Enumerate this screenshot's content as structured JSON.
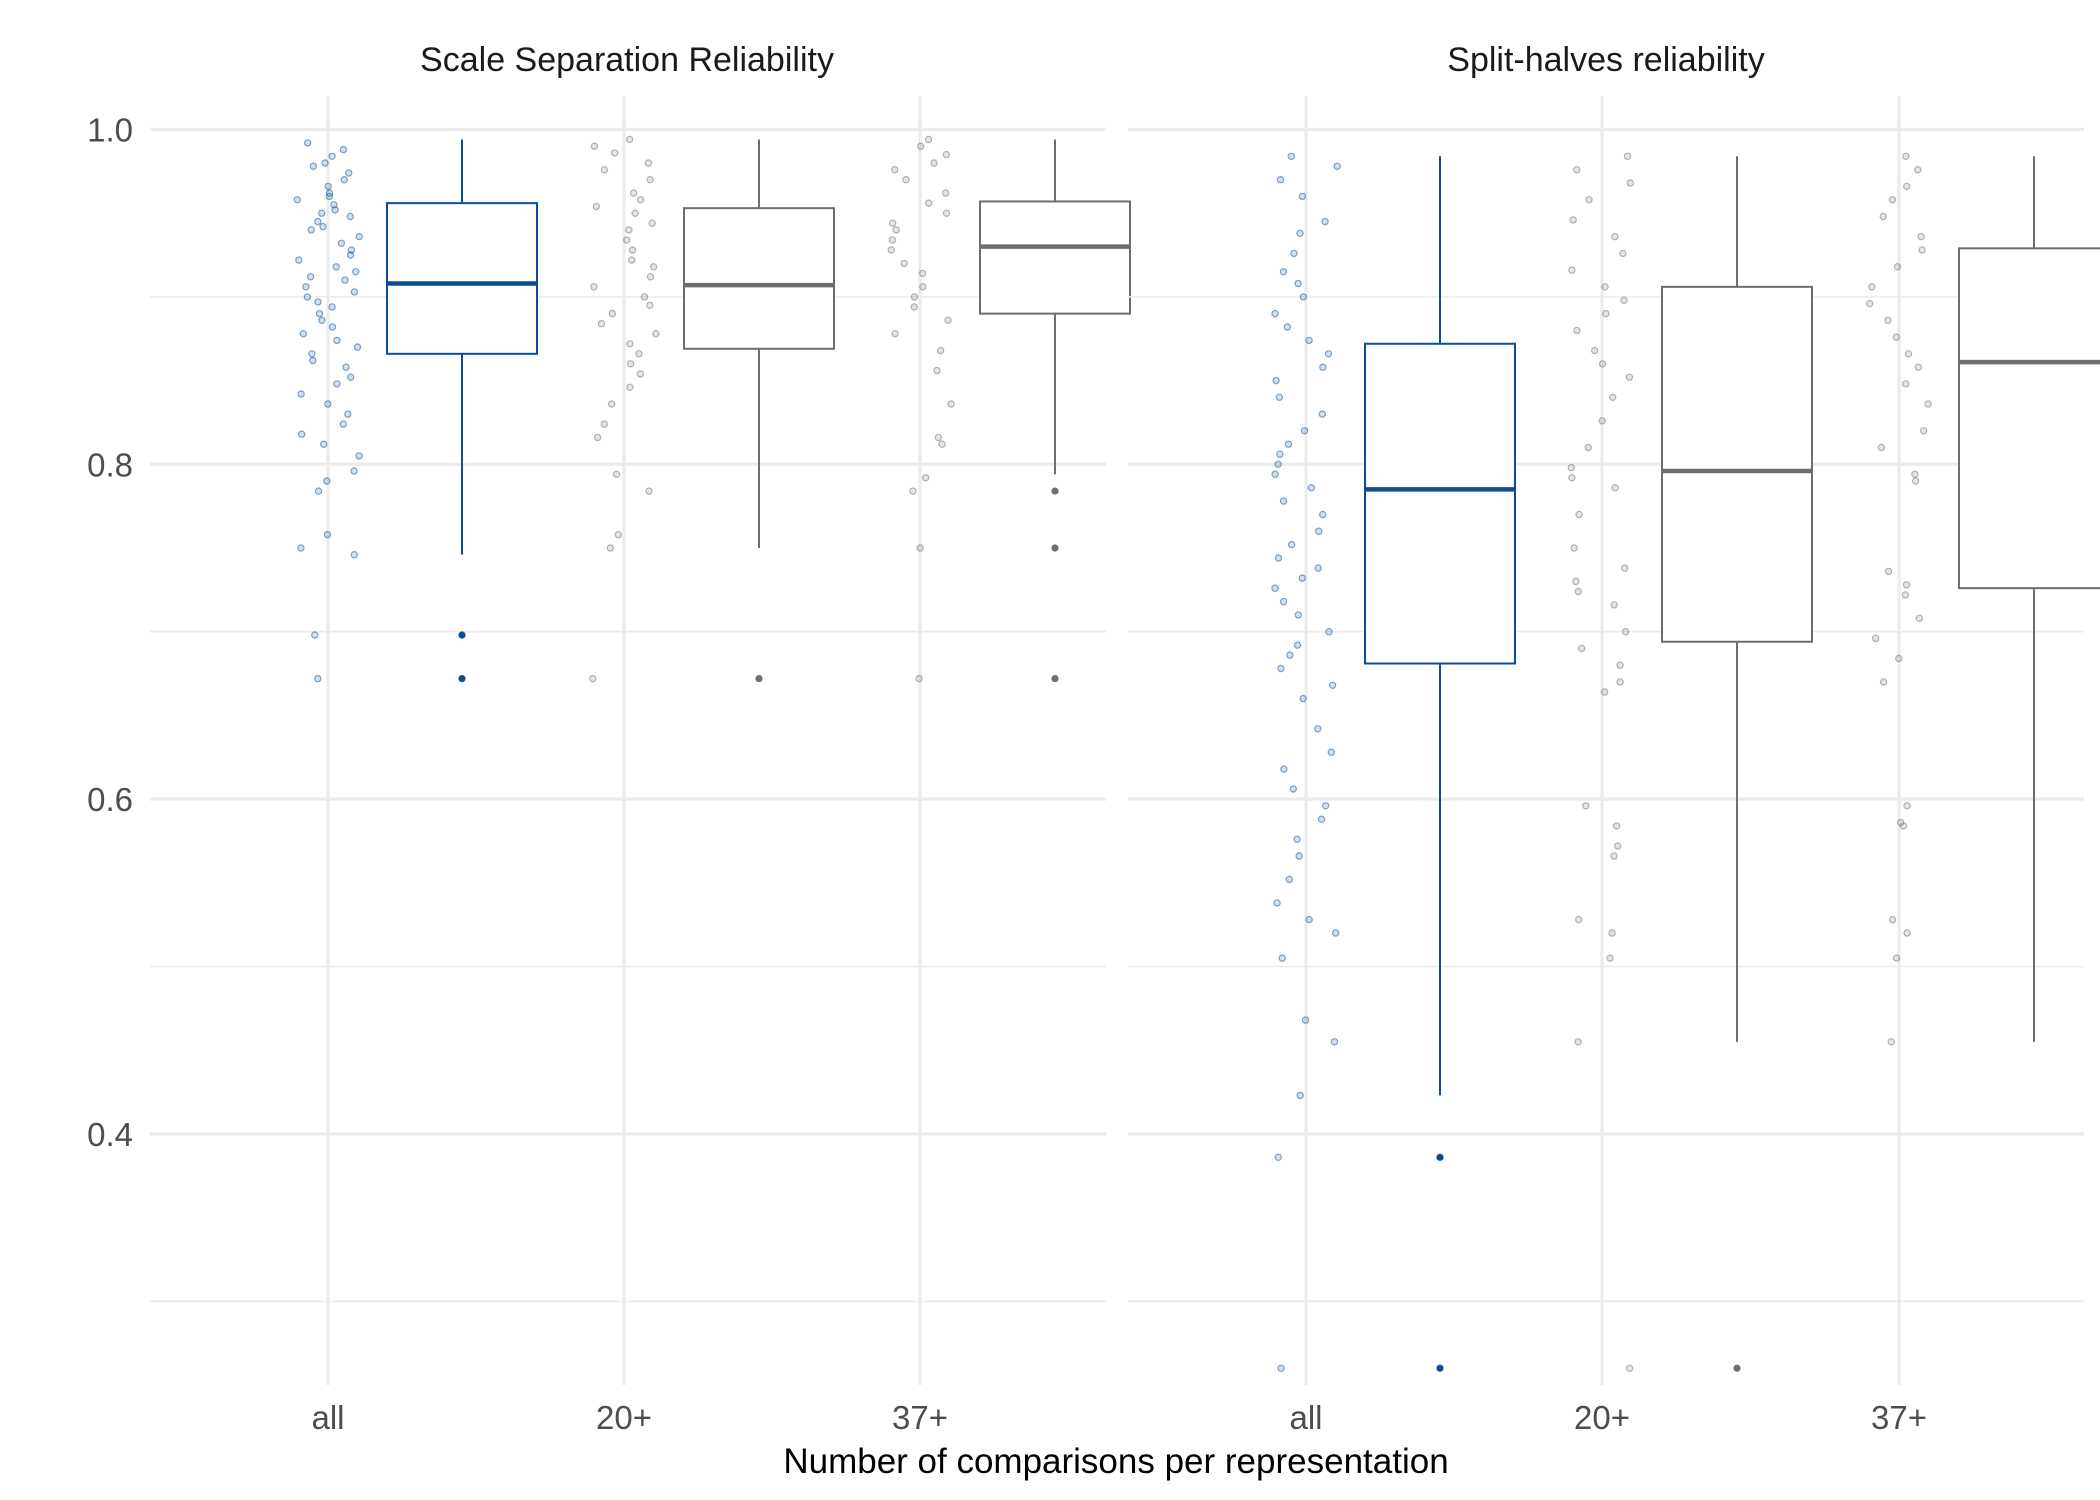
{
  "chart_data": {
    "type": "boxplot",
    "xlabel": "Number of comparisons per representation",
    "ylabel": "",
    "ylim": [
      0.25,
      1.02
    ],
    "y_ticks": [
      0.4,
      0.6,
      0.8,
      1.0
    ],
    "y_tick_labels": [
      "0.4",
      "0.6",
      "0.8",
      "1.0"
    ],
    "categories": [
      "all",
      "20+",
      "37+"
    ],
    "grid": true,
    "legend": "none",
    "colors": {
      "highlight": "#0d4d94",
      "default": "#6e6e6e",
      "grid": "#ebebeb"
    },
    "panels": [
      {
        "title": "Scale Separation Reliability",
        "groups": [
          {
            "category": "all",
            "highlight": true,
            "min": 0.746,
            "q1": 0.866,
            "median": 0.908,
            "q3": 0.956,
            "max": 0.994,
            "outliers": [
              0.698,
              0.672
            ],
            "jitter": [
              0.992,
              0.988,
              0.984,
              0.98,
              0.978,
              0.974,
              0.97,
              0.966,
              0.962,
              0.96,
              0.958,
              0.955,
              0.952,
              0.95,
              0.948,
              0.945,
              0.942,
              0.94,
              0.936,
              0.932,
              0.928,
              0.925,
              0.922,
              0.918,
              0.915,
              0.912,
              0.91,
              0.906,
              0.903,
              0.9,
              0.897,
              0.894,
              0.89,
              0.886,
              0.882,
              0.878,
              0.874,
              0.87,
              0.866,
              0.862,
              0.858,
              0.852,
              0.848,
              0.842,
              0.836,
              0.83,
              0.824,
              0.818,
              0.812,
              0.805,
              0.796,
              0.79,
              0.784,
              0.758,
              0.75,
              0.746,
              0.698,
              0.672
            ]
          },
          {
            "category": "20+",
            "highlight": false,
            "min": 0.75,
            "q1": 0.869,
            "median": 0.907,
            "q3": 0.953,
            "max": 0.994,
            "outliers": [
              0.672
            ],
            "jitter": [
              0.994,
              0.99,
              0.986,
              0.98,
              0.976,
              0.97,
              0.962,
              0.958,
              0.954,
              0.95,
              0.944,
              0.94,
              0.934,
              0.928,
              0.922,
              0.918,
              0.912,
              0.906,
              0.9,
              0.895,
              0.89,
              0.884,
              0.878,
              0.872,
              0.866,
              0.86,
              0.854,
              0.846,
              0.836,
              0.824,
              0.816,
              0.794,
              0.784,
              0.758,
              0.75,
              0.672
            ]
          },
          {
            "category": "37+",
            "highlight": false,
            "min": 0.794,
            "q1": 0.89,
            "median": 0.93,
            "q3": 0.957,
            "max": 0.994,
            "outliers": [
              0.784,
              0.75,
              0.672
            ],
            "jitter": [
              0.994,
              0.99,
              0.985,
              0.98,
              0.976,
              0.97,
              0.962,
              0.956,
              0.95,
              0.944,
              0.94,
              0.934,
              0.928,
              0.92,
              0.914,
              0.906,
              0.9,
              0.894,
              0.886,
              0.878,
              0.868,
              0.856,
              0.836,
              0.816,
              0.812,
              0.792,
              0.784,
              0.75,
              0.672
            ]
          }
        ]
      },
      {
        "title": "Split-halves reliability",
        "groups": [
          {
            "category": "all",
            "highlight": true,
            "min": 0.423,
            "q1": 0.681,
            "median": 0.785,
            "q3": 0.872,
            "max": 0.984,
            "outliers": [
              0.386,
              0.26
            ],
            "jitter": [
              0.984,
              0.978,
              0.97,
              0.96,
              0.945,
              0.938,
              0.926,
              0.915,
              0.908,
              0.9,
              0.89,
              0.882,
              0.874,
              0.866,
              0.858,
              0.85,
              0.84,
              0.83,
              0.82,
              0.812,
              0.806,
              0.8,
              0.794,
              0.786,
              0.778,
              0.77,
              0.76,
              0.752,
              0.744,
              0.738,
              0.732,
              0.726,
              0.718,
              0.71,
              0.7,
              0.692,
              0.686,
              0.678,
              0.668,
              0.66,
              0.642,
              0.628,
              0.618,
              0.606,
              0.596,
              0.588,
              0.576,
              0.566,
              0.552,
              0.538,
              0.528,
              0.52,
              0.505,
              0.468,
              0.455,
              0.423,
              0.386,
              0.26
            ]
          },
          {
            "category": "20+",
            "highlight": false,
            "min": 0.455,
            "q1": 0.694,
            "median": 0.796,
            "q3": 0.906,
            "max": 0.984,
            "outliers": [
              0.26
            ],
            "jitter": [
              0.984,
              0.976,
              0.968,
              0.958,
              0.946,
              0.936,
              0.926,
              0.916,
              0.906,
              0.898,
              0.89,
              0.88,
              0.868,
              0.86,
              0.852,
              0.84,
              0.826,
              0.81,
              0.798,
              0.792,
              0.786,
              0.77,
              0.75,
              0.738,
              0.73,
              0.724,
              0.716,
              0.7,
              0.69,
              0.68,
              0.67,
              0.664,
              0.596,
              0.584,
              0.572,
              0.566,
              0.528,
              0.52,
              0.505,
              0.455,
              0.26
            ]
          },
          {
            "category": "37+",
            "highlight": false,
            "min": 0.455,
            "q1": 0.726,
            "median": 0.861,
            "q3": 0.929,
            "max": 0.984,
            "outliers": [],
            "jitter": [
              0.984,
              0.976,
              0.966,
              0.958,
              0.948,
              0.936,
              0.928,
              0.918,
              0.906,
              0.896,
              0.886,
              0.876,
              0.866,
              0.858,
              0.848,
              0.836,
              0.82,
              0.81,
              0.794,
              0.79,
              0.736,
              0.728,
              0.722,
              0.708,
              0.696,
              0.684,
              0.67,
              0.596,
              0.586,
              0.584,
              0.528,
              0.52,
              0.505,
              0.455
            ]
          }
        ]
      }
    ]
  }
}
